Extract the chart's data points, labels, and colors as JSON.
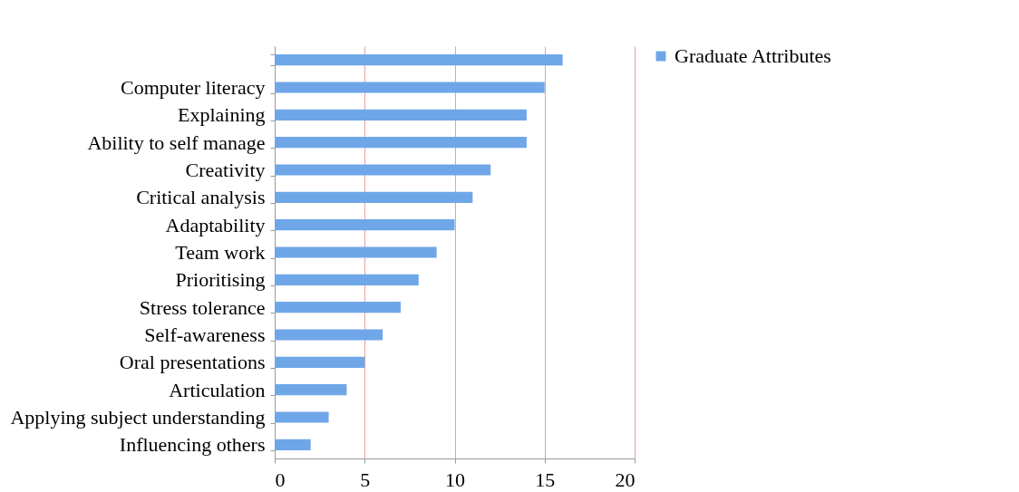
{
  "chart_data": {
    "type": "bar",
    "orientation": "horizontal",
    "categories": [
      null,
      "Computer literacy",
      "Explaining",
      "Ability to self manage",
      "Creativity",
      "Critical analysis",
      "Adaptability",
      "Team work",
      "Prioritising",
      "Stress tolerance",
      "Self-awareness",
      "Oral presentations",
      "Articulation",
      "Applying subject understanding",
      "Influencing others"
    ],
    "series": [
      {
        "name": "Graduate Attributes",
        "color": "#6fa6e8",
        "values": [
          16,
          15,
          14,
          14,
          12,
          11,
          10,
          9,
          8,
          7,
          6,
          5,
          4,
          3,
          2
        ]
      }
    ],
    "xlim": [
      0,
      20
    ],
    "xticks": [
      0,
      5,
      10,
      15,
      20
    ],
    "grid": "x",
    "legend": "right"
  }
}
